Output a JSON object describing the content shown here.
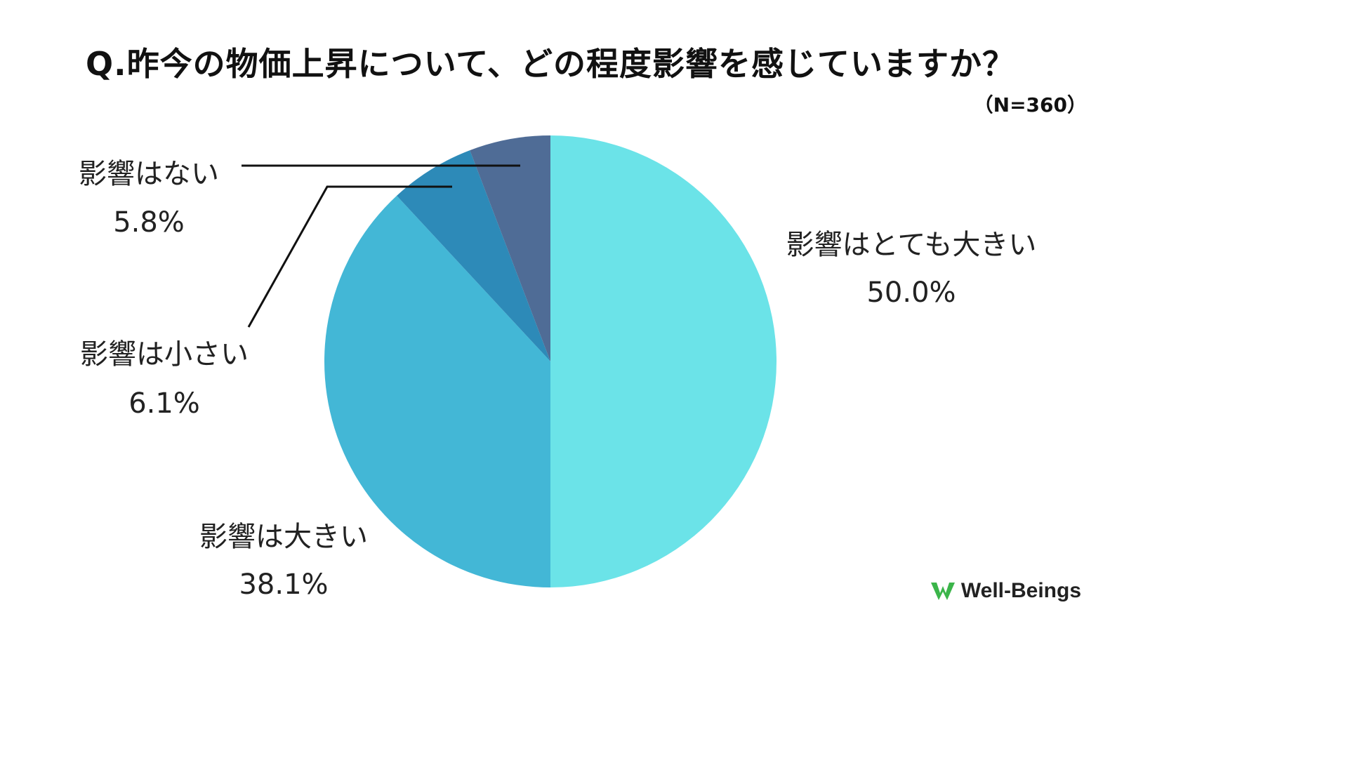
{
  "chart_data": {
    "type": "pie",
    "title": "Q.昨今の物価上昇について、どの程度影響を感じていますか？",
    "subtitle": "（N=360）",
    "slices": [
      {
        "label": "影響はとても大きい",
        "value": 50.0,
        "value_label": "50.0%",
        "color": "#6BE3E8"
      },
      {
        "label": "影響は大きい",
        "value": 38.1,
        "value_label": "38.1%",
        "color": "#43B7D6"
      },
      {
        "label": "影響は小さい",
        "value": 6.1,
        "value_label": "6.1%",
        "color": "#2D8AB8"
      },
      {
        "label": "影響はない",
        "value": 5.8,
        "value_label": "5.8%",
        "color": "#4F6C96"
      }
    ]
  },
  "brand": {
    "name": "Well-Beings",
    "color": "#3BB54A"
  }
}
